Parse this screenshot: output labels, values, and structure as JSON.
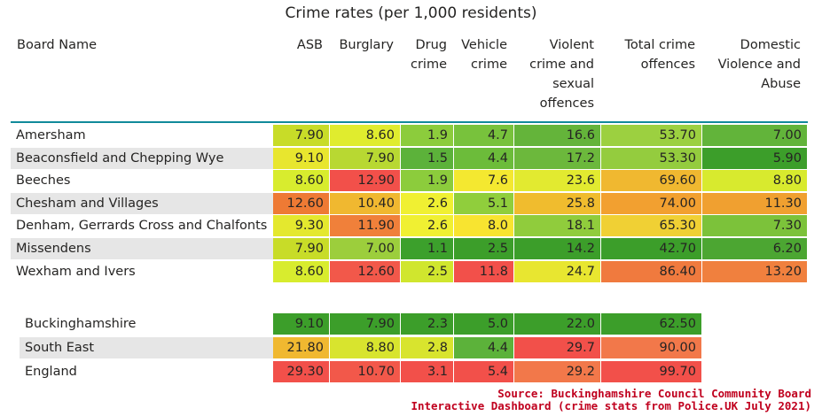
{
  "chart_data": {
    "type": "table",
    "title": "Crime rates (per 1,000 residents)",
    "columns": [
      {
        "lines": [
          "Board Name"
        ]
      },
      {
        "lines": [
          "ASB"
        ]
      },
      {
        "lines": [
          "Burglary"
        ]
      },
      {
        "lines": [
          "Drug",
          "crime"
        ]
      },
      {
        "lines": [
          "Vehicle",
          "crime"
        ]
      },
      {
        "lines": [
          "Violent",
          "crime and",
          "sexual",
          "offences"
        ]
      },
      {
        "lines": [
          "Total crime",
          "offences"
        ]
      },
      {
        "lines": [
          "Domestic",
          "Violence and",
          "Abuse"
        ]
      }
    ],
    "boards": [
      {
        "name": "Amersham",
        "values": [
          "7.90",
          "8.60",
          "1.9",
          "4.7",
          "16.6",
          "53.70",
          "7.00"
        ]
      },
      {
        "name": "Beaconsfield and Chepping Wye",
        "values": [
          "9.10",
          "7.90",
          "1.5",
          "4.4",
          "17.2",
          "53.30",
          "5.90"
        ]
      },
      {
        "name": "Beeches",
        "values": [
          "8.60",
          "12.90",
          "1.9",
          "7.6",
          "23.6",
          "69.60",
          "8.80"
        ]
      },
      {
        "name": "Chesham and Villages",
        "values": [
          "12.60",
          "10.40",
          "2.6",
          "5.1",
          "25.8",
          "74.00",
          "11.30"
        ]
      },
      {
        "name": "Denham, Gerrards Cross and Chalfonts",
        "values": [
          "9.30",
          "11.90",
          "2.6",
          "8.0",
          "18.1",
          "65.30",
          "7.30"
        ]
      },
      {
        "name": "Missendens",
        "values": [
          "7.90",
          "7.00",
          "1.1",
          "2.5",
          "14.2",
          "42.70",
          "6.20"
        ]
      },
      {
        "name": "Wexham and Ivers",
        "values": [
          "8.60",
          "12.60",
          "2.5",
          "11.8",
          "24.7",
          "86.40",
          "13.20"
        ]
      }
    ],
    "comparisons": [
      {
        "name": "Buckinghamshire",
        "values": [
          "9.10",
          "7.90",
          "2.3",
          "5.0",
          "22.0",
          "62.50"
        ]
      },
      {
        "name": "South East",
        "values": [
          "21.80",
          "8.80",
          "2.8",
          "4.4",
          "29.7",
          "90.00"
        ]
      },
      {
        "name": "England",
        "values": [
          "29.30",
          "10.70",
          "3.1",
          "5.4",
          "29.2",
          "99.70"
        ]
      }
    ],
    "board_colors": [
      [
        "#c8dc28",
        "#e0ec2e",
        "#8ccc3c",
        "#78c23c",
        "#64b43a",
        "#9cd040",
        "#62b43a"
      ],
      [
        "#e8e62e",
        "#b8d832",
        "#5cb23a",
        "#6cbc3a",
        "#6cb83c",
        "#94cc3e",
        "#3c9e2a"
      ],
      [
        "#d8ec2e",
        "#f2504a",
        "#8ccc3c",
        "#f4e830",
        "#e2ea30",
        "#f0b830",
        "#d8ea2e"
      ],
      [
        "#ee7a34",
        "#f0b830",
        "#f0f032",
        "#90ce3c",
        "#f0bc2e",
        "#f2a030",
        "#f0a030"
      ],
      [
        "#e4e82e",
        "#f0803a",
        "#f0f032",
        "#f8e430",
        "#90cc3c",
        "#f0d034",
        "#7cc23a"
      ],
      [
        "#c8dc28",
        "#9cce3c",
        "#3ca02c",
        "#3c9e2a",
        "#3c9e2a",
        "#3c9e2a",
        "#4ca632"
      ],
      [
        "#d8ec2e",
        "#f2584a",
        "#d0e62e",
        "#f2504a",
        "#e8e630",
        "#f07a3e",
        "#f0803e"
      ]
    ],
    "comparison_colors": [
      [
        "#3c9e2a",
        "#3c9e2a",
        "#3c9e2a",
        "#3c9e2a",
        "#3c9e2a",
        "#3c9e2a"
      ],
      [
        "#f0b830",
        "#d8e42e",
        "#d8e42e",
        "#5cb23a",
        "#f2504a",
        "#f2784a"
      ],
      [
        "#f2504a",
        "#f2584a",
        "#f2504a",
        "#f2504a",
        "#f2784a",
        "#f2504a"
      ]
    ]
  },
  "source_note": {
    "line1": "Source:  Buckinghamshire Council Community Board",
    "line2": "Interactive Dashboard (crime stats from Police.UK July 2021)"
  }
}
